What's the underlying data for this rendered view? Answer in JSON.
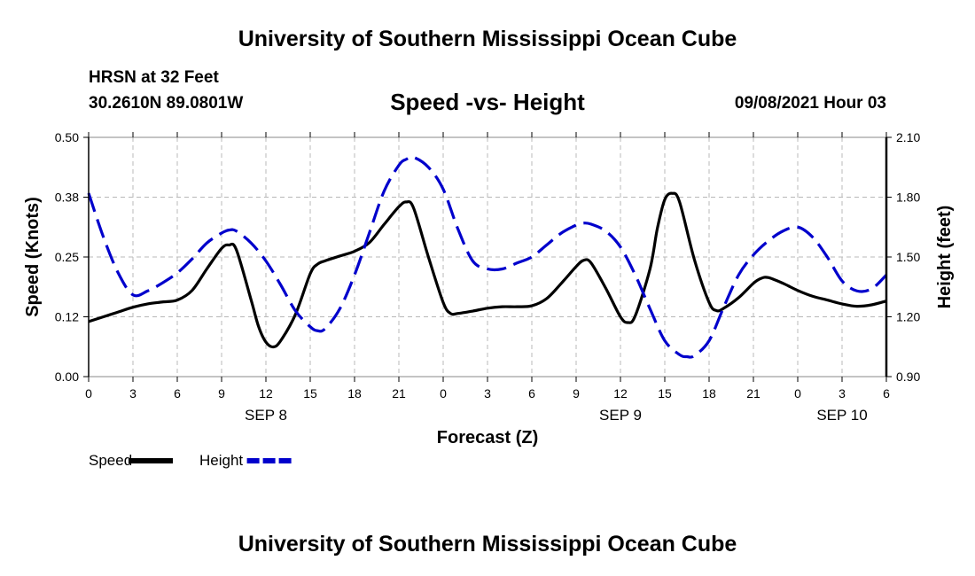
{
  "header": {
    "title": "University of Southern Mississippi Ocean Cube",
    "station": "HRSN at 32 Feet",
    "coords": "30.2610N  89.0801W",
    "datetime": "09/08/2021 Hour 03"
  },
  "footer": {
    "title": "University of Southern Mississippi Ocean Cube"
  },
  "chart_data": {
    "type": "line",
    "title": "Speed -vs- Height",
    "xlabel": "Forecast (Z)",
    "ylabel_left": "Speed (Knots)",
    "ylabel_right": "Height (feet)",
    "xlim": [
      0,
      54
    ],
    "ylim_left": [
      0,
      0.5
    ],
    "ylim_right": [
      0.9,
      2.1
    ],
    "grid": true,
    "x_ticks": [
      0,
      3,
      6,
      9,
      12,
      15,
      18,
      21,
      24,
      27,
      30,
      33,
      36,
      39,
      42,
      45,
      48,
      51,
      54
    ],
    "x_tick_labels": [
      "0",
      "3",
      "6",
      "9",
      "12",
      "15",
      "18",
      "21",
      "0",
      "3",
      "6",
      "9",
      "12",
      "15",
      "18",
      "21",
      "0",
      "3",
      "6"
    ],
    "left_ticks": [
      0,
      0.125,
      0.25,
      0.375,
      0.5
    ],
    "left_tick_labels": [
      "0.00",
      "0.12",
      "0.25",
      "0.38",
      "0.50"
    ],
    "right_ticks": [
      0.9,
      1.2,
      1.5,
      1.8,
      2.1
    ],
    "right_tick_labels": [
      "0.90",
      "1.20",
      "1.50",
      "1.80",
      "2.10"
    ],
    "day_labels": [
      {
        "x": 12,
        "label": "SEP 8"
      },
      {
        "x": 36,
        "label": "SEP 9"
      },
      {
        "x": 51,
        "label": "SEP 10"
      }
    ],
    "legend_position": "bottom-left",
    "series": [
      {
        "name": "Speed",
        "axis": "left",
        "color": "#000000",
        "style": "solid",
        "points": [
          [
            0,
            0.115
          ],
          [
            1,
            0.125
          ],
          [
            2,
            0.135
          ],
          [
            3,
            0.145
          ],
          [
            4,
            0.152
          ],
          [
            5,
            0.156
          ],
          [
            6,
            0.16
          ],
          [
            7,
            0.18
          ],
          [
            8,
            0.225
          ],
          [
            9,
            0.268
          ],
          [
            9.5,
            0.275
          ],
          [
            10,
            0.265
          ],
          [
            11,
            0.16
          ],
          [
            11.5,
            0.105
          ],
          [
            12,
            0.072
          ],
          [
            12.5,
            0.062
          ],
          [
            13,
            0.075
          ],
          [
            14,
            0.13
          ],
          [
            15,
            0.215
          ],
          [
            15.5,
            0.235
          ],
          [
            16,
            0.242
          ],
          [
            17,
            0.252
          ],
          [
            18,
            0.262
          ],
          [
            19,
            0.28
          ],
          [
            20,
            0.318
          ],
          [
            21,
            0.355
          ],
          [
            21.5,
            0.365
          ],
          [
            22,
            0.352
          ],
          [
            23,
            0.25
          ],
          [
            24,
            0.155
          ],
          [
            24.5,
            0.132
          ],
          [
            25,
            0.132
          ],
          [
            26,
            0.137
          ],
          [
            27,
            0.143
          ],
          [
            28,
            0.146
          ],
          [
            29,
            0.146
          ],
          [
            30,
            0.148
          ],
          [
            31,
            0.163
          ],
          [
            32,
            0.195
          ],
          [
            33,
            0.23
          ],
          [
            33.5,
            0.243
          ],
          [
            34,
            0.238
          ],
          [
            35,
            0.185
          ],
          [
            36,
            0.125
          ],
          [
            36.5,
            0.113
          ],
          [
            37,
            0.127
          ],
          [
            38,
            0.225
          ],
          [
            38.5,
            0.31
          ],
          [
            39,
            0.37
          ],
          [
            39.5,
            0.383
          ],
          [
            40,
            0.365
          ],
          [
            41,
            0.245
          ],
          [
            42,
            0.155
          ],
          [
            42.5,
            0.138
          ],
          [
            43,
            0.143
          ],
          [
            44,
            0.165
          ],
          [
            45,
            0.195
          ],
          [
            45.5,
            0.205
          ],
          [
            46,
            0.207
          ],
          [
            47,
            0.195
          ],
          [
            48,
            0.18
          ],
          [
            49,
            0.168
          ],
          [
            50,
            0.16
          ],
          [
            51,
            0.152
          ],
          [
            52,
            0.147
          ],
          [
            53,
            0.15
          ],
          [
            54,
            0.158
          ]
        ]
      },
      {
        "name": "Height",
        "axis": "right",
        "color": "#0000cc",
        "style": "dashed",
        "points": [
          [
            0,
            1.82
          ],
          [
            1,
            1.6
          ],
          [
            2,
            1.42
          ],
          [
            3,
            1.31
          ],
          [
            4,
            1.33
          ],
          [
            5,
            1.37
          ],
          [
            6,
            1.42
          ],
          [
            7,
            1.49
          ],
          [
            8,
            1.57
          ],
          [
            9,
            1.62
          ],
          [
            9.5,
            1.635
          ],
          [
            10,
            1.63
          ],
          [
            11,
            1.57
          ],
          [
            12,
            1.48
          ],
          [
            13,
            1.36
          ],
          [
            14,
            1.23
          ],
          [
            15,
            1.15
          ],
          [
            15.5,
            1.13
          ],
          [
            16,
            1.14
          ],
          [
            17,
            1.24
          ],
          [
            18,
            1.41
          ],
          [
            19,
            1.62
          ],
          [
            20,
            1.83
          ],
          [
            21,
            1.96
          ],
          [
            21.5,
            1.99
          ],
          [
            22,
            2.0
          ],
          [
            23,
            1.95
          ],
          [
            24,
            1.84
          ],
          [
            25,
            1.64
          ],
          [
            26,
            1.48
          ],
          [
            27,
            1.44
          ],
          [
            28,
            1.44
          ],
          [
            29,
            1.47
          ],
          [
            30,
            1.5
          ],
          [
            31,
            1.56
          ],
          [
            32,
            1.62
          ],
          [
            33,
            1.66
          ],
          [
            33.5,
            1.67
          ],
          [
            34,
            1.665
          ],
          [
            35,
            1.63
          ],
          [
            36,
            1.55
          ],
          [
            37,
            1.41
          ],
          [
            38,
            1.24
          ],
          [
            39,
            1.08
          ],
          [
            40,
            1.01
          ],
          [
            40.5,
            1.0
          ],
          [
            41,
            1.005
          ],
          [
            42,
            1.08
          ],
          [
            43,
            1.25
          ],
          [
            44,
            1.41
          ],
          [
            45,
            1.51
          ],
          [
            46,
            1.58
          ],
          [
            47,
            1.63
          ],
          [
            48,
            1.65
          ],
          [
            49,
            1.6
          ],
          [
            50,
            1.5
          ],
          [
            51,
            1.38
          ],
          [
            52,
            1.33
          ],
          [
            53,
            1.34
          ],
          [
            54,
            1.41
          ]
        ]
      }
    ]
  }
}
